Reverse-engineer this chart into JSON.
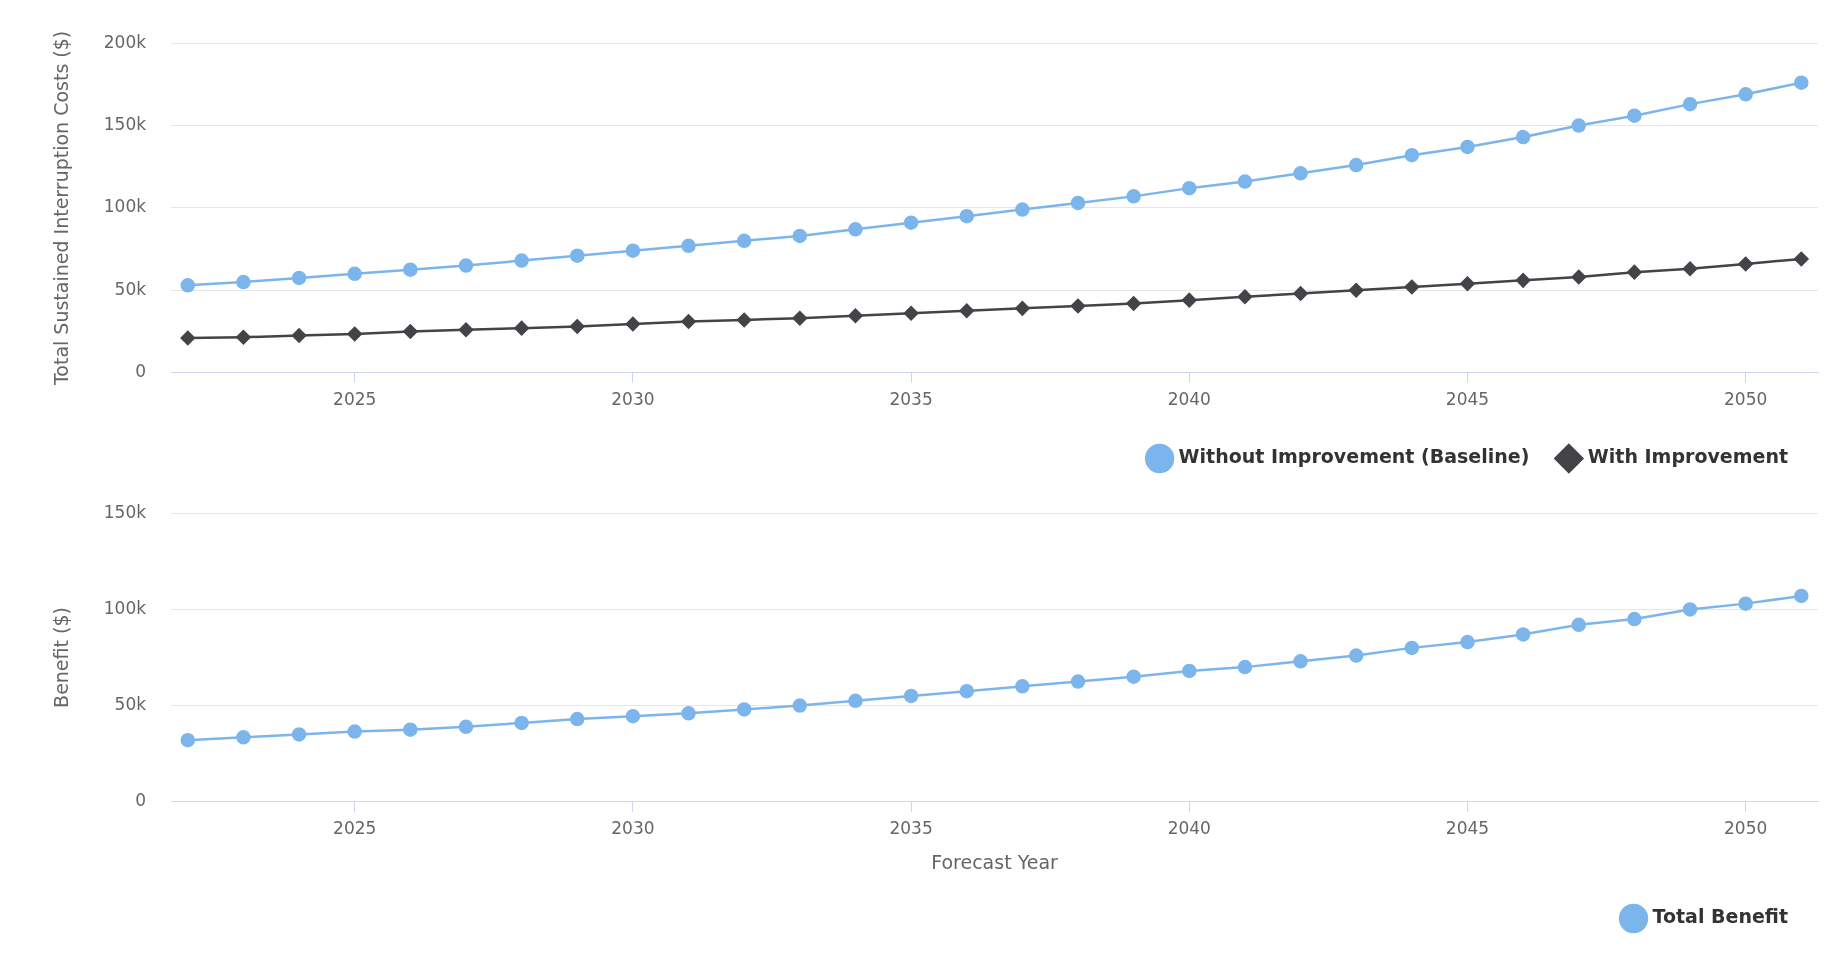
{
  "chart_data": [
    {
      "type": "line",
      "x": [
        2022,
        2023,
        2024,
        2025,
        2026,
        2027,
        2028,
        2029,
        2030,
        2031,
        2032,
        2033,
        2034,
        2035,
        2036,
        2037,
        2038,
        2039,
        2040,
        2041,
        2042,
        2043,
        2044,
        2045,
        2046,
        2047,
        2048,
        2049,
        2050,
        2051
      ],
      "ylabel": "Total Sustained Interruption Costs ($)",
      "series": [
        {
          "name": "Without Improvement (Baseline)",
          "color": "#7cb5ec",
          "marker": "circle",
          "values": [
            53000,
            55000,
            57500,
            60000,
            62500,
            65000,
            68000,
            71000,
            74000,
            77000,
            80000,
            83000,
            87000,
            91000,
            95000,
            99000,
            103000,
            107000,
            112000,
            116000,
            121000,
            126000,
            132000,
            137000,
            143000,
            150000,
            156000,
            163000,
            169000,
            176000
          ]
        },
        {
          "name": "With Improvement",
          "color": "#434348",
          "marker": "diamond",
          "values": [
            21000,
            21500,
            22500,
            23500,
            25000,
            26000,
            27000,
            28000,
            29500,
            31000,
            32000,
            33000,
            34500,
            36000,
            37500,
            39000,
            40500,
            42000,
            44000,
            46000,
            48000,
            50000,
            52000,
            54000,
            56000,
            58000,
            61000,
            63000,
            66000,
            69000
          ]
        }
      ],
      "xlim": [
        2021.7,
        2051.3
      ],
      "xticks": [
        2025,
        2030,
        2035,
        2040,
        2045,
        2050
      ],
      "ylim": [
        0,
        200000
      ],
      "yticks": [
        {
          "value": 0,
          "label": "0"
        },
        {
          "value": 50000,
          "label": "50k"
        },
        {
          "value": 100000,
          "label": "100k"
        },
        {
          "value": 150000,
          "label": "150k"
        },
        {
          "value": 200000,
          "label": "200k"
        }
      ],
      "grid": "y",
      "legend": "bottom right"
    },
    {
      "type": "line",
      "x": [
        2022,
        2023,
        2024,
        2025,
        2026,
        2027,
        2028,
        2029,
        2030,
        2031,
        2032,
        2033,
        2034,
        2035,
        2036,
        2037,
        2038,
        2039,
        2040,
        2041,
        2042,
        2043,
        2044,
        2045,
        2046,
        2047,
        2048,
        2049,
        2050,
        2051
      ],
      "xlabel": "Forecast Year",
      "ylabel": "Benefit ($)",
      "series": [
        {
          "name": "Total Benefit",
          "color": "#7cb5ec",
          "marker": "circle",
          "values": [
            32000,
            33500,
            35000,
            36500,
            37500,
            39000,
            41000,
            43000,
            44500,
            46000,
            48000,
            50000,
            52500,
            55000,
            57500,
            60000,
            62500,
            65000,
            68000,
            70000,
            73000,
            76000,
            80000,
            83000,
            87000,
            92000,
            95000,
            100000,
            103000,
            107000
          ]
        }
      ],
      "xlim": [
        2021.7,
        2051.3
      ],
      "xticks": [
        2025,
        2030,
        2035,
        2040,
        2045,
        2050
      ],
      "ylim": [
        0,
        150000
      ],
      "yticks": [
        {
          "value": 0,
          "label": "0"
        },
        {
          "value": 50000,
          "label": "50k"
        },
        {
          "value": 100000,
          "label": "100k"
        },
        {
          "value": 150000,
          "label": "150k"
        }
      ],
      "grid": "y",
      "legend": "bottom right"
    }
  ]
}
